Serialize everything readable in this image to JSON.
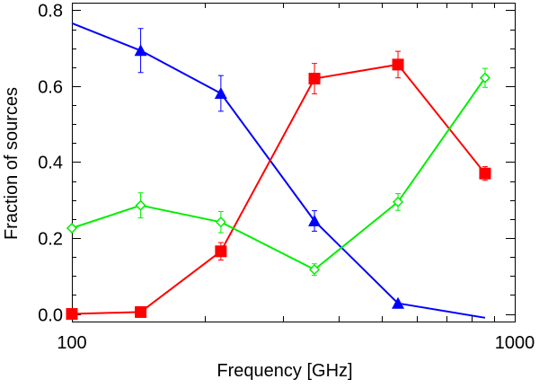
{
  "chart_data": {
    "type": "line",
    "xscale": "log",
    "xlim": [
      100,
      1000
    ],
    "ylim": [
      -0.02,
      0.82
    ],
    "xlabel": "Frequency [GHz]",
    "ylabel": "Fraction of sources",
    "title": "",
    "grid": false,
    "legend": "none",
    "x_ticks": [
      {
        "value": 100,
        "label": "100"
      },
      {
        "value": 1000,
        "label": "1000"
      }
    ],
    "y_ticks": [
      {
        "value": 0.0,
        "label": "0.0"
      },
      {
        "value": 0.2,
        "label": "0.2"
      },
      {
        "value": 0.4,
        "label": "0.4"
      },
      {
        "value": 0.6,
        "label": "0.6"
      },
      {
        "value": 0.8,
        "label": "0.8"
      }
    ],
    "series": [
      {
        "marker": "triangle",
        "color": "#0000ff",
        "x": [
          100,
          143,
          217,
          353,
          545,
          857
        ],
        "values": [
          0.766,
          0.694,
          0.581,
          0.245,
          0.028,
          -0.01
        ],
        "yerr": [
          0,
          0.058,
          0.047,
          0.027,
          0,
          0
        ],
        "show_marker": [
          false,
          true,
          true,
          true,
          true,
          false
        ]
      },
      {
        "marker": "square",
        "color": "#ff0000",
        "x": [
          100,
          143,
          217,
          353,
          545,
          857
        ],
        "values": [
          0.0,
          0.005,
          0.165,
          0.62,
          0.657,
          0.37
        ],
        "yerr": [
          0,
          0,
          0.023,
          0.04,
          0.035,
          0.018
        ],
        "show_marker": [
          true,
          true,
          true,
          true,
          true,
          true
        ]
      },
      {
        "marker": "diamond",
        "color": "#00ee00",
        "x": [
          100,
          143,
          217,
          353,
          545,
          857
        ],
        "values": [
          0.226,
          0.286,
          0.242,
          0.117,
          0.295,
          0.622
        ],
        "yerr": [
          0,
          0.033,
          0.028,
          0.015,
          0.022,
          0.025
        ],
        "show_marker": [
          true,
          true,
          true,
          true,
          true,
          true
        ]
      }
    ]
  }
}
